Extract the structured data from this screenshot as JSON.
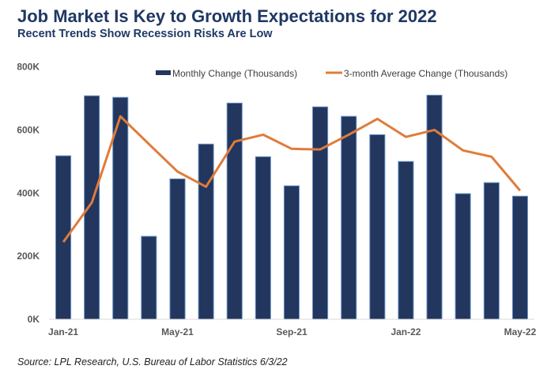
{
  "header": {
    "title": "Job Market Is Key to Growth Expectations for 2022",
    "subtitle": "Recent Trends Show Recession Risks Are Low"
  },
  "footer": {
    "source": "Source: LPL Research, U.S. Bureau of Labor Statistics 6/3/22"
  },
  "colors": {
    "bar": "#22365e",
    "bar_outline": "#6b93c9",
    "line": "#e07b39",
    "title": "#1f3864"
  },
  "chart_data": {
    "type": "bar",
    "title": "Job Market Is Key to Growth Expectations for 2022",
    "subtitle": "Recent Trends Show Recession Risks Are Low",
    "xlabel": "",
    "ylabel": "",
    "categories": [
      "Jan-21",
      "Feb-21",
      "Mar-21",
      "Apr-21",
      "May-21",
      "Jun-21",
      "Jul-21",
      "Aug-21",
      "Sep-21",
      "Oct-21",
      "Nov-21",
      "Dec-21",
      "Jan-22",
      "Feb-22",
      "Mar-22",
      "Apr-22",
      "May-22"
    ],
    "x_tick_labels": [
      "Jan-21",
      "May-21",
      "Sep-21",
      "Jan-22",
      "May-22"
    ],
    "x_tick_indices": [
      0,
      4,
      8,
      12,
      16
    ],
    "y_ticks": [
      0,
      200,
      400,
      600,
      800
    ],
    "y_tick_labels": [
      "0K",
      "200K",
      "400K",
      "600K",
      "800K"
    ],
    "ylim": [
      0,
      800
    ],
    "grid": false,
    "legend_position": "top-right",
    "series": [
      {
        "name": "Monthly Change (Thousands)",
        "type": "bar",
        "values": [
          518,
          708,
          703,
          263,
          445,
          555,
          685,
          515,
          423,
          673,
          643,
          585,
          500,
          710,
          398,
          433,
          390
        ]
      },
      {
        "name": "3-month Average Change (Thousands)",
        "type": "line",
        "values": [
          245,
          370,
          643,
          555,
          468,
          420,
          563,
          585,
          540,
          538,
          585,
          635,
          578,
          600,
          535,
          515,
          408
        ]
      }
    ]
  }
}
